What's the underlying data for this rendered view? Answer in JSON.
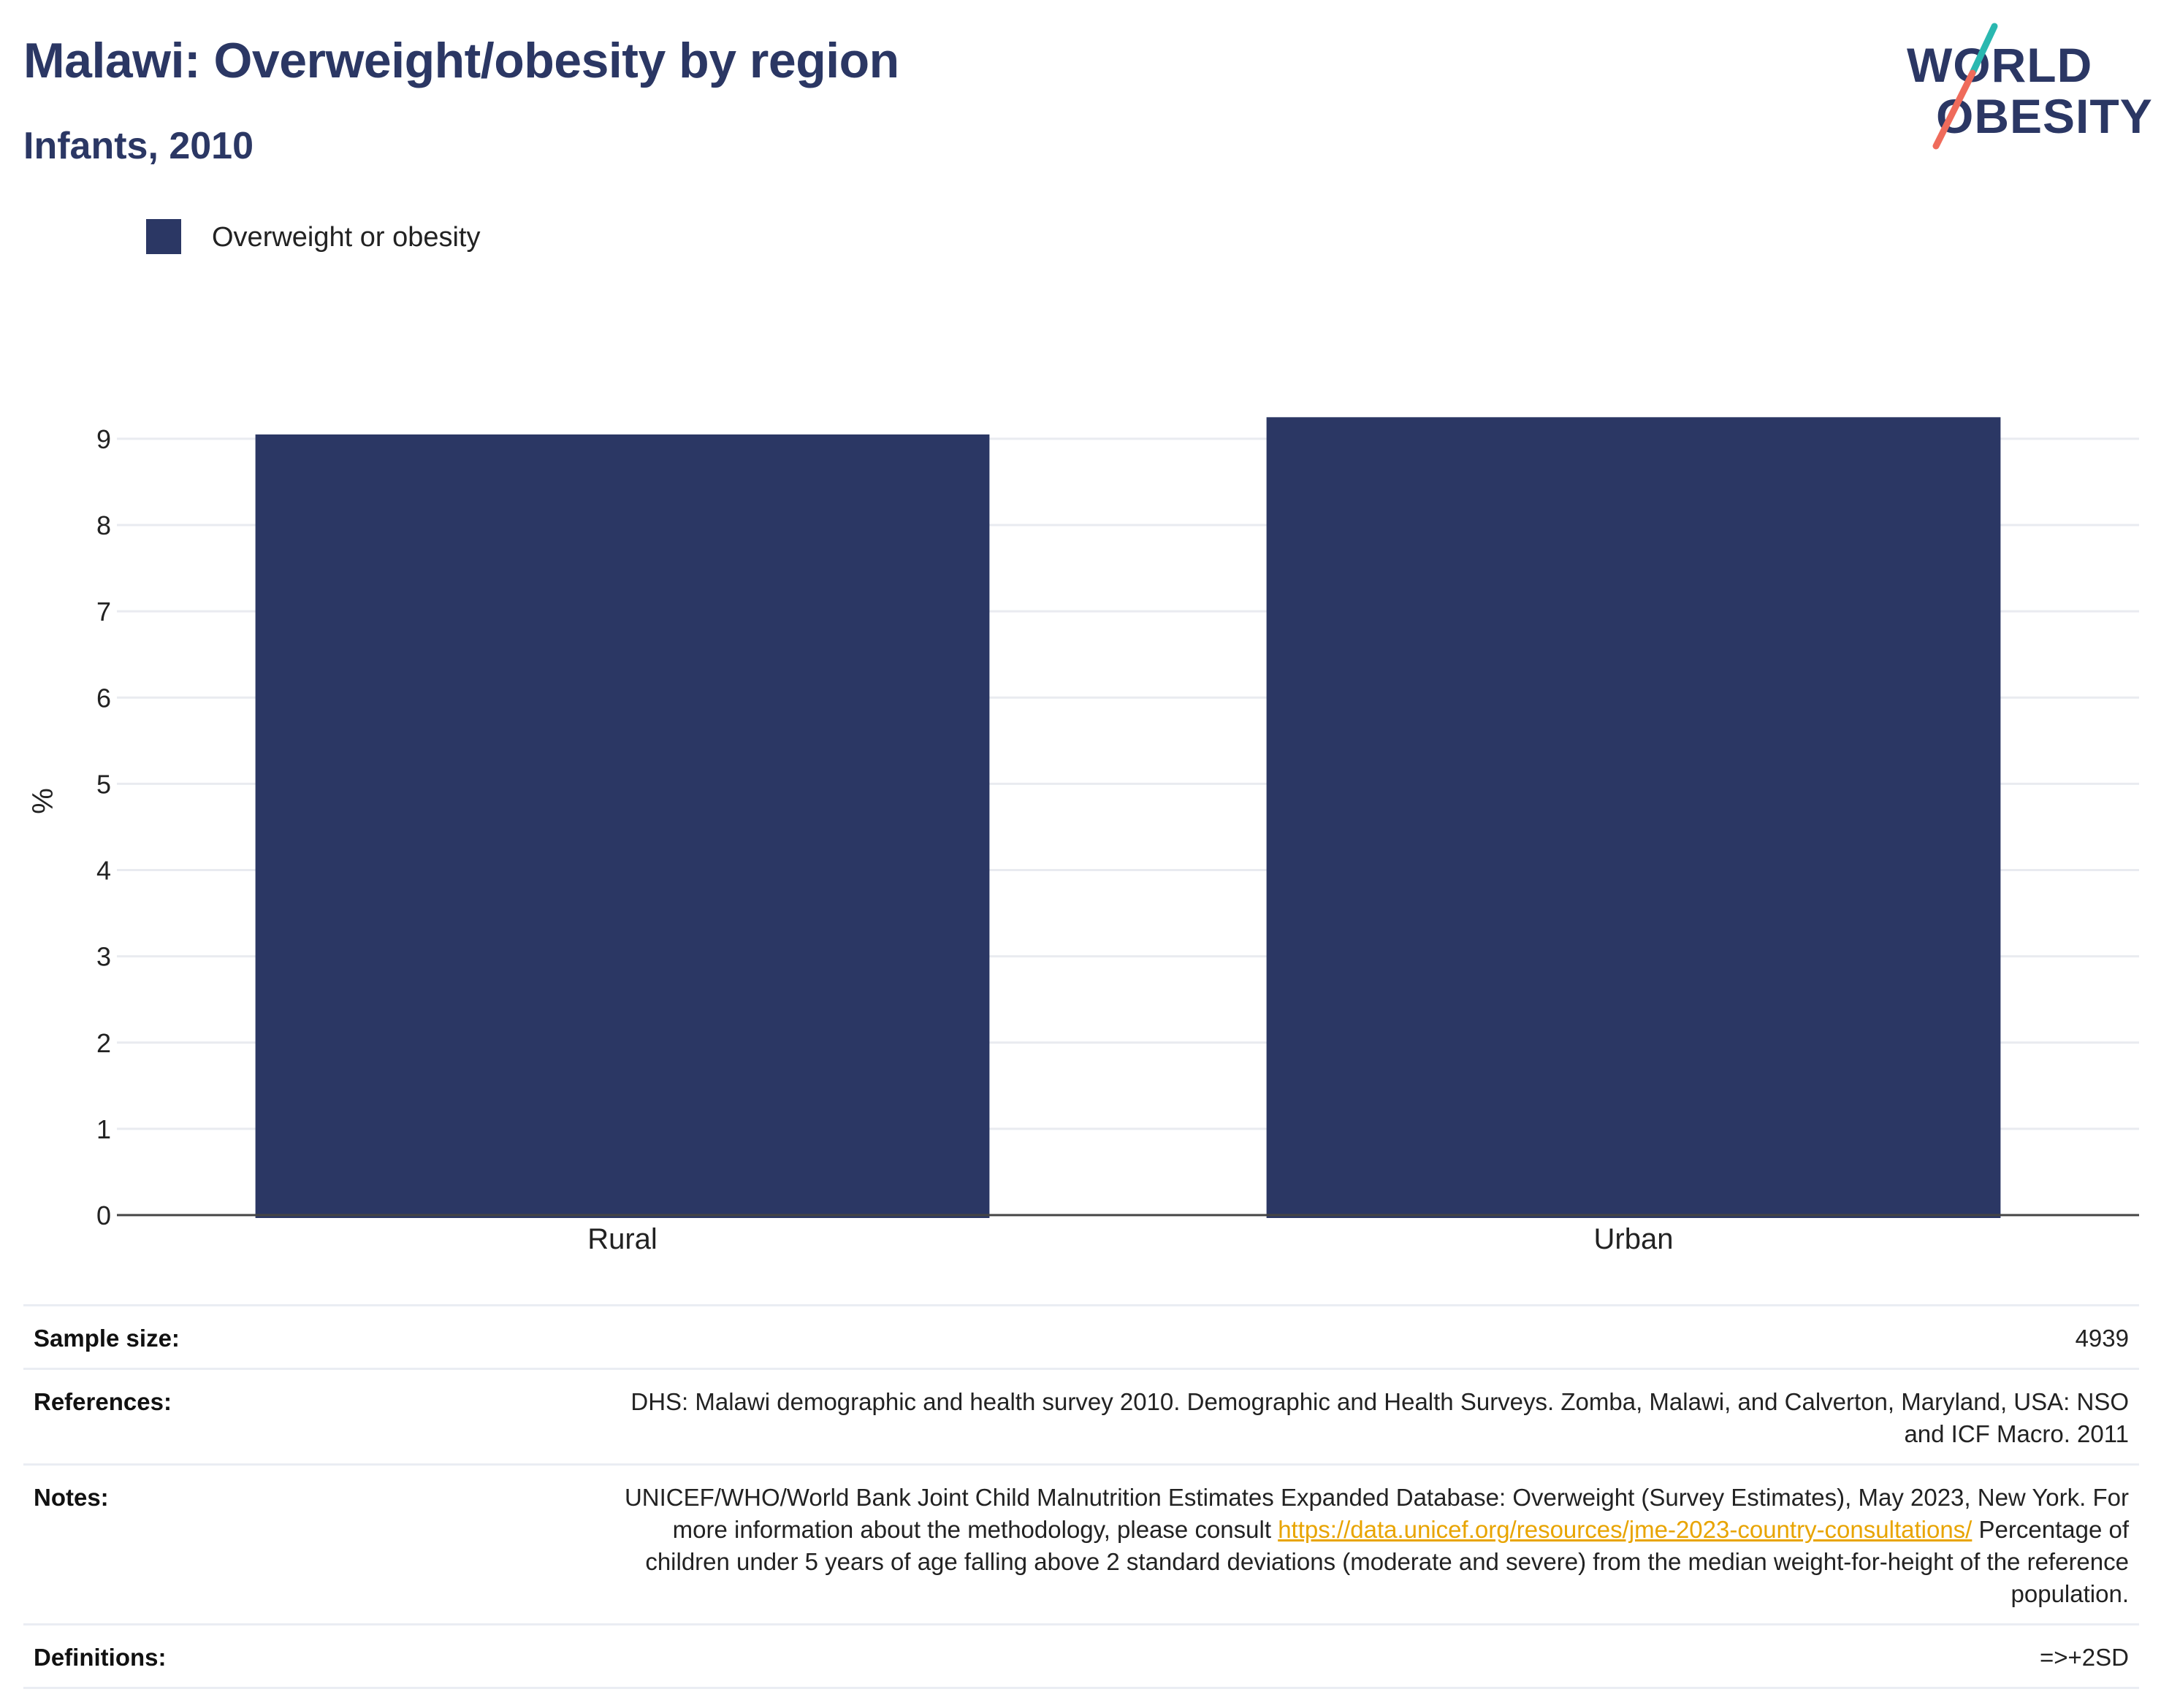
{
  "header": {
    "title": "Malawi: Overweight/obesity by region",
    "subtitle": "Infants, 2010"
  },
  "logo": {
    "line1": "WORLD",
    "line2": "OBESITY"
  },
  "legend": {
    "label": "Overweight or obesity"
  },
  "colors": {
    "bar": "#2b3764",
    "title": "#2b3764",
    "link": "#e8a400",
    "logo_teal": "#2ab8b0",
    "logo_coral": "#ef6b5b"
  },
  "chart_data": {
    "type": "bar",
    "categories": [
      "Rural",
      "Urban"
    ],
    "series": [
      {
        "name": "Overweight or obesity",
        "values": [
          9.05,
          9.25
        ]
      }
    ],
    "ylabel": "%",
    "xlabel": "",
    "ylim": [
      0,
      9.6
    ],
    "yticks": [
      0,
      1,
      2,
      3,
      4,
      5,
      6,
      7,
      8,
      9
    ],
    "grid": true,
    "legend": "top-left"
  },
  "footer": {
    "sample_size": {
      "label": "Sample size:",
      "value": "4939"
    },
    "references": {
      "label": "References:",
      "value": "DHS: Malawi demographic and health survey 2010. Demographic and Health Surveys. Zomba, Malawi, and Calverton, Maryland, USA: NSO and ICF Macro. 2011"
    },
    "notes": {
      "label": "Notes:",
      "text_before": "UNICEF/WHO/World Bank Joint Child Malnutrition Estimates Expanded Database: Overweight (Survey Estimates), May 2023, New York. For more information about the methodology, please consult ",
      "link": "https://data.unicef.org/resources/jme-2023-country-consultations/",
      "text_after": " Percentage of children under 5 years of age falling above 2 standard deviations (moderate and severe) from the median weight-for-height of the reference population."
    },
    "definitions": {
      "label": "Definitions:",
      "value": "=>+2SD"
    }
  }
}
